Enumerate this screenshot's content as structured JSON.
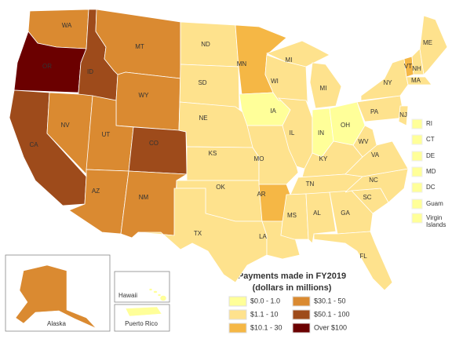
{
  "legend": {
    "title": "Payments made in FY2019",
    "subtitle": "(dollars in millions)",
    "bins": [
      {
        "label": "$0.0 - 1.0",
        "color": "#ffff99"
      },
      {
        "label": "$1.1 - 10",
        "color": "#fee28d"
      },
      {
        "label": "$10.1 - 30",
        "color": "#f5b745"
      },
      {
        "label": "$30.1 - 50",
        "color": "#da8a31"
      },
      {
        "label": "$50.1 - 100",
        "color": "#9e4b1b"
      },
      {
        "label": "Over  $100",
        "color": "#6b0000"
      }
    ]
  },
  "states": [
    {
      "label": "WA",
      "bin": 3
    },
    {
      "label": "OR",
      "bin": 5
    },
    {
      "label": "ID",
      "bin": 4
    },
    {
      "label": "MT",
      "bin": 3
    },
    {
      "label": "WY",
      "bin": 3
    },
    {
      "label": "CA",
      "bin": 4
    },
    {
      "label": "NV",
      "bin": 3
    },
    {
      "label": "UT",
      "bin": 3
    },
    {
      "label": "CO",
      "bin": 4
    },
    {
      "label": "AZ",
      "bin": 3
    },
    {
      "label": "NM",
      "bin": 3
    },
    {
      "label": "ND",
      "bin": 1
    },
    {
      "label": "SD",
      "bin": 1
    },
    {
      "label": "NE",
      "bin": 1
    },
    {
      "label": "KS",
      "bin": 1
    },
    {
      "label": "OK",
      "bin": 1
    },
    {
      "label": "TX",
      "bin": 1
    },
    {
      "label": "MN",
      "bin": 2
    },
    {
      "label": "IA",
      "bin": 0
    },
    {
      "label": "MO",
      "bin": 1
    },
    {
      "label": "AR",
      "bin": 2
    },
    {
      "label": "LA",
      "bin": 1
    },
    {
      "label": "WI",
      "bin": 1
    },
    {
      "label": "IL",
      "bin": 1
    },
    {
      "label": "MI",
      "bin": 1
    },
    {
      "label": "IN",
      "bin": 0
    },
    {
      "label": "OH",
      "bin": 0
    },
    {
      "label": "KY",
      "bin": 1
    },
    {
      "label": "TN",
      "bin": 1
    },
    {
      "label": "MS",
      "bin": 1
    },
    {
      "label": "AL",
      "bin": 1
    },
    {
      "label": "GA",
      "bin": 1
    },
    {
      "label": "FL",
      "bin": 1
    },
    {
      "label": "SC",
      "bin": 1
    },
    {
      "label": "NC",
      "bin": 1
    },
    {
      "label": "VA",
      "bin": 1
    },
    {
      "label": "WV",
      "bin": 1
    },
    {
      "label": "PA",
      "bin": 1
    },
    {
      "label": "NY",
      "bin": 1
    },
    {
      "label": "VT",
      "bin": 2
    },
    {
      "label": "NH",
      "bin": 1
    },
    {
      "label": "ME",
      "bin": 1
    },
    {
      "label": "MA",
      "bin": 1
    },
    {
      "label": "NJ",
      "bin": 1
    }
  ],
  "small_areas": [
    {
      "label": "RI",
      "bin": 0
    },
    {
      "label": "CT",
      "bin": 0
    },
    {
      "label": "DE",
      "bin": 0
    },
    {
      "label": "MD",
      "bin": 0
    },
    {
      "label": "DC",
      "bin": 0
    },
    {
      "label": "Guam",
      "bin": 0
    },
    {
      "label": "Virgin Islands",
      "bin": 0
    }
  ],
  "insets": [
    {
      "label": "Alaska",
      "bin": 3
    },
    {
      "label": "Hawaii",
      "bin": 0
    },
    {
      "label": "Puerto Rico",
      "bin": 0
    }
  ]
}
